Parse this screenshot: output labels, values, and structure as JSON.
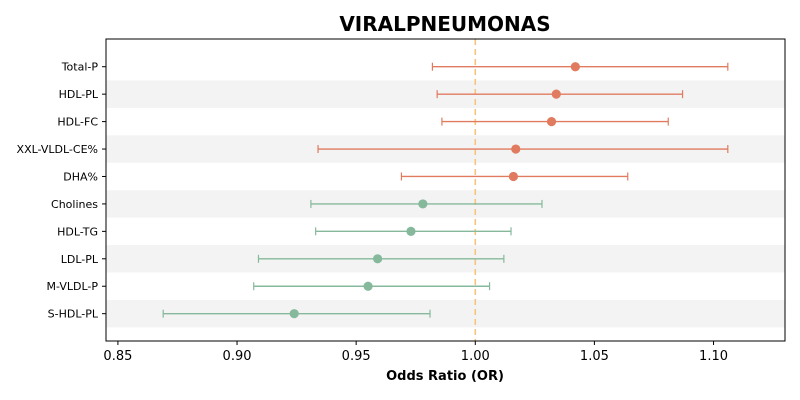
{
  "chart_data": {
    "type": "forest",
    "title": "VIRALPNEUMONAS",
    "xlabel": "Odds Ratio (OR)",
    "ylabel": "",
    "xlim": [
      0.845,
      1.13
    ],
    "xticks": [
      0.85,
      0.9,
      0.95,
      1.0,
      1.05,
      1.1
    ],
    "xtick_labels": [
      "0.85",
      "0.90",
      "0.95",
      "1.00",
      "1.05",
      "1.10"
    ],
    "reference_line": 1.0,
    "grid": false,
    "row_shading": "alternating",
    "colors": {
      "increase": "#e07b60",
      "decrease": "#86b99b",
      "reference": "#f5c57e",
      "band": "#f3f3f3"
    },
    "rows": [
      {
        "label": "Total-P",
        "or": 1.042,
        "low": 0.982,
        "high": 1.106,
        "group": "increase"
      },
      {
        "label": "HDL-PL",
        "or": 1.034,
        "low": 0.984,
        "high": 1.087,
        "group": "increase"
      },
      {
        "label": "HDL-FC",
        "or": 1.032,
        "low": 0.986,
        "high": 1.081,
        "group": "increase"
      },
      {
        "label": "XXL-VLDL-CE%",
        "or": 1.017,
        "low": 0.934,
        "high": 1.106,
        "group": "increase"
      },
      {
        "label": "DHA%",
        "or": 1.016,
        "low": 0.969,
        "high": 1.064,
        "group": "increase"
      },
      {
        "label": "Cholines",
        "or": 0.978,
        "low": 0.931,
        "high": 1.028,
        "group": "decrease"
      },
      {
        "label": "HDL-TG",
        "or": 0.973,
        "low": 0.933,
        "high": 1.015,
        "group": "decrease"
      },
      {
        "label": "LDL-PL",
        "or": 0.959,
        "low": 0.909,
        "high": 1.012,
        "group": "decrease"
      },
      {
        "label": "M-VLDL-P",
        "or": 0.955,
        "low": 0.907,
        "high": 1.006,
        "group": "decrease"
      },
      {
        "label": "S-HDL-PL",
        "or": 0.924,
        "low": 0.869,
        "high": 0.981,
        "group": "decrease"
      }
    ]
  }
}
